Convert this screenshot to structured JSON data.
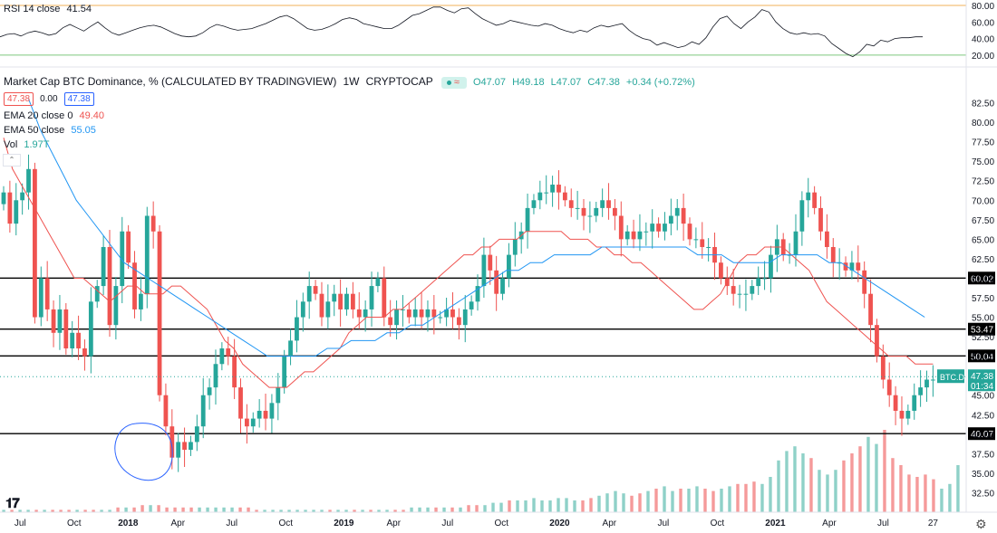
{
  "rsi": {
    "title": "RSI 14 close",
    "value": "41.54",
    "ticks": [
      "80.00",
      "60.00",
      "40.00",
      "20.00"
    ],
    "tick_values": [
      80,
      60,
      40,
      20
    ],
    "upper_band": 80,
    "lower_band": 20,
    "color": "#131722",
    "upper_band_color": "#f0b058",
    "lower_band_color": "#7dc77d",
    "series": [
      42,
      45,
      46,
      43,
      47,
      49,
      47,
      44,
      46,
      53,
      57,
      53,
      49,
      55,
      60,
      53,
      47,
      44,
      47,
      50,
      53,
      55,
      56,
      54,
      50,
      46,
      43,
      42,
      43,
      47,
      53,
      57,
      55,
      52,
      50,
      51,
      52,
      55,
      58,
      62,
      66,
      68,
      64,
      58,
      52,
      50,
      51,
      54,
      58,
      63,
      65,
      63,
      58,
      56,
      54,
      52,
      52,
      56,
      62,
      68,
      70,
      74,
      78,
      78,
      74,
      71,
      76,
      77,
      70,
      64,
      60,
      56,
      58,
      62,
      60,
      58,
      56,
      55,
      58,
      56,
      52,
      49,
      47,
      50,
      48,
      53,
      56,
      54,
      56,
      58,
      50,
      44,
      40,
      38,
      32,
      35,
      32,
      29,
      31,
      36,
      33,
      41,
      54,
      64,
      67,
      58,
      52,
      60,
      66,
      75,
      72,
      60,
      52,
      47,
      45,
      47,
      45,
      46,
      43,
      34,
      28,
      22,
      18,
      24,
      33,
      31,
      38,
      36,
      40,
      41,
      41,
      42,
      42
    ]
  },
  "header": {
    "title": "Market Cap BTC Dominance, % (CALCULATED BY TRADINGVIEW)",
    "interval": "1W",
    "source": "CRYPTOCAP",
    "ohlc_o_label": "O",
    "ohlc_o": "47.07",
    "ohlc_h_label": "H",
    "ohlc_h": "49.18",
    "ohlc_l_label": "L",
    "ohlc_l": "47.07",
    "ohlc_c_label": "C",
    "ohlc_c": "47.38",
    "change": "+0.34 (+0.72%)",
    "buy_price": "47.38",
    "spread": "0.00",
    "sell_price": "47.38"
  },
  "indicators": {
    "ema20_label": "EMA 20 close 0",
    "ema20_value": "49.40",
    "ema20_color": "#ef5350",
    "ema50_label": "EMA 50 close",
    "ema50_value": "55.05",
    "ema50_color": "#2196f3",
    "vol_label": "Vol",
    "vol_value": "1.97T"
  },
  "colors": {
    "up": "#26a69a",
    "down": "#ef5350",
    "up_vol": "#8fd1c8",
    "down_vol": "#f59a9a",
    "text": "#131722",
    "grid": "#e0e3eb",
    "circle": "#2962ff"
  },
  "chart_data": {
    "type": "candlestick",
    "title": "Market Cap BTC Dominance, % (CALCULATED BY TRADINGVIEW)",
    "interval": "1W",
    "ylim": [
      30,
      85
    ],
    "y_ticks": [
      "82.50",
      "80.00",
      "77.50",
      "75.00",
      "72.50",
      "70.00",
      "67.50",
      "65.00",
      "62.50",
      "60.00",
      "57.50",
      "55.00",
      "52.50",
      "50.00",
      "47.50",
      "45.00",
      "42.50",
      "40.00",
      "37.50",
      "35.00",
      "32.50"
    ],
    "y_tick_values": [
      82.5,
      80,
      77.5,
      75,
      72.5,
      70,
      67.5,
      65,
      62.5,
      60,
      57.5,
      55,
      52.5,
      50,
      47.5,
      45,
      42.5,
      40,
      37.5,
      35,
      32.5
    ],
    "x_labels": [
      "Jul",
      "Oct",
      "2018",
      "Apr",
      "Jul",
      "Oct",
      "2019",
      "Apr",
      "Jul",
      "Oct",
      "2020",
      "Apr",
      "Jul",
      "Oct",
      "2021",
      "Apr",
      "Jul",
      "27"
    ],
    "x_label_weeks": [
      4,
      17,
      30,
      42,
      55,
      68,
      82,
      94,
      107,
      120,
      134,
      146,
      159,
      172,
      186,
      199,
      212,
      224
    ],
    "horizontal_levels": [
      {
        "value": 60.02,
        "label": "60.02"
      },
      {
        "value": 53.47,
        "label": "53.47"
      },
      {
        "value": 50.04,
        "label": "50.04"
      },
      {
        "value": 40.07,
        "label": "40.07"
      }
    ],
    "last_price": {
      "symbol": "BTC.D",
      "value": "47.38",
      "countdown": "01:34",
      "y": 47.38
    },
    "closes": [
      71,
      67,
      70,
      71,
      74,
      55,
      60,
      56,
      53,
      56,
      51,
      53,
      51,
      50,
      57,
      59,
      64,
      54,
      59,
      66,
      62,
      56,
      58,
      68,
      66,
      45,
      41,
      37,
      39,
      38,
      39,
      41,
      45,
      46,
      49,
      51,
      50,
      46,
      42,
      41,
      42,
      43,
      42,
      44,
      46,
      50,
      52,
      55,
      57,
      59,
      58,
      55,
      57,
      58,
      56,
      58,
      56,
      55,
      56,
      59,
      60,
      55,
      54,
      56,
      56,
      55,
      56,
      55,
      56,
      55,
      55,
      56,
      55,
      54,
      56,
      57,
      59,
      63,
      61,
      58,
      60,
      63,
      65,
      66,
      69,
      70,
      71,
      71,
      72,
      71,
      70,
      69,
      69,
      68,
      68,
      69,
      70,
      69,
      68,
      65,
      66,
      65,
      66,
      66,
      67,
      66,
      67,
      68,
      69,
      67,
      65,
      65,
      64,
      64,
      62,
      60,
      59,
      58,
      58,
      58,
      59,
      60,
      60,
      63,
      65,
      63,
      63,
      66,
      70,
      71,
      69,
      66,
      64,
      62,
      62,
      61,
      62,
      61,
      58,
      54,
      50,
      47,
      45,
      43,
      42,
      43,
      45,
      46,
      47,
      47
    ],
    "ema20": [
      78,
      74,
      72,
      70,
      68,
      66,
      64,
      62,
      60,
      60,
      59,
      58,
      57,
      58,
      59,
      59,
      58,
      58,
      58,
      59,
      59,
      58,
      57,
      56,
      54,
      52,
      51,
      49,
      48,
      47,
      46,
      46,
      46,
      47,
      48,
      48,
      49,
      50,
      51,
      53,
      54,
      55,
      55,
      55,
      56,
      56,
      57,
      58,
      59,
      60,
      61,
      62,
      63,
      63,
      64,
      64,
      65,
      65,
      65,
      66,
      66,
      66,
      66,
      66,
      65,
      65,
      65,
      64,
      64,
      63,
      63,
      62,
      62,
      61,
      60,
      59,
      58,
      57,
      56,
      56,
      57,
      58,
      60,
      62,
      63,
      63,
      64,
      64,
      64,
      63,
      62,
      61,
      59,
      57,
      56,
      55,
      54,
      53,
      52,
      51,
      50,
      50,
      50,
      49,
      49,
      49
    ],
    "ema50": [
      83,
      79,
      76,
      73,
      70,
      68,
      66,
      64,
      62,
      61,
      60,
      59,
      58,
      57,
      56,
      55,
      54,
      53,
      52,
      51,
      50,
      50,
      50,
      50,
      50,
      51,
      51,
      52,
      52,
      52,
      53,
      53,
      54,
      54,
      55,
      56,
      57,
      58,
      59,
      60,
      61,
      61,
      62,
      62,
      63,
      63,
      63,
      63,
      64,
      64,
      64,
      64,
      64,
      64,
      64,
      64,
      63,
      63,
      63,
      62,
      62,
      62,
      62,
      63,
      63,
      63,
      63,
      62,
      62,
      61,
      60,
      59,
      58,
      57,
      56,
      55
    ],
    "volume": [
      0.1,
      0.1,
      0.1,
      0.1,
      0.1,
      0.1,
      0.1,
      0.1,
      0.1,
      0.1,
      0.1,
      0.1,
      0.1,
      0.1,
      0.2,
      0.2,
      0.2,
      0.3,
      0.3,
      0.3,
      0.2,
      0.2,
      0.2,
      0.2,
      0.2,
      0.2,
      0.2,
      0.2,
      0.2,
      0.2,
      0.2,
      0.1,
      0.1,
      0.1,
      0.1,
      0.1,
      0.1,
      0.1,
      0.1,
      0.1,
      0.1,
      0.1,
      0.1,
      0.1,
      0.1,
      0.1,
      0.1,
      0.1,
      0.1,
      0.1,
      0.2,
      0.2,
      0.2,
      0.2,
      0.2,
      0.2,
      0.2,
      0.3,
      0.3,
      0.3,
      0.4,
      0.4,
      0.5,
      0.5,
      0.5,
      0.6,
      0.5,
      0.5,
      0.6,
      0.6,
      0.5,
      0.5,
      0.6,
      0.7,
      0.8,
      0.9,
      0.8,
      0.7,
      0.8,
      0.9,
      1.0,
      1.1,
      0.9,
      1.0,
      1.0,
      1.1,
      1.0,
      0.9,
      1.0,
      1.1,
      1.2,
      1.2,
      1.3,
      1.2,
      1.5,
      2.2,
      2.6,
      2.8,
      2.5,
      2.3,
      1.8,
      1.6,
      1.8,
      2.2,
      2.5,
      2.8,
      3.2,
      2.9,
      3.5,
      2.3,
      2.0,
      1.6,
      1.5,
      1.6,
      1.4,
      1.0,
      1.2,
      2.0
    ]
  }
}
